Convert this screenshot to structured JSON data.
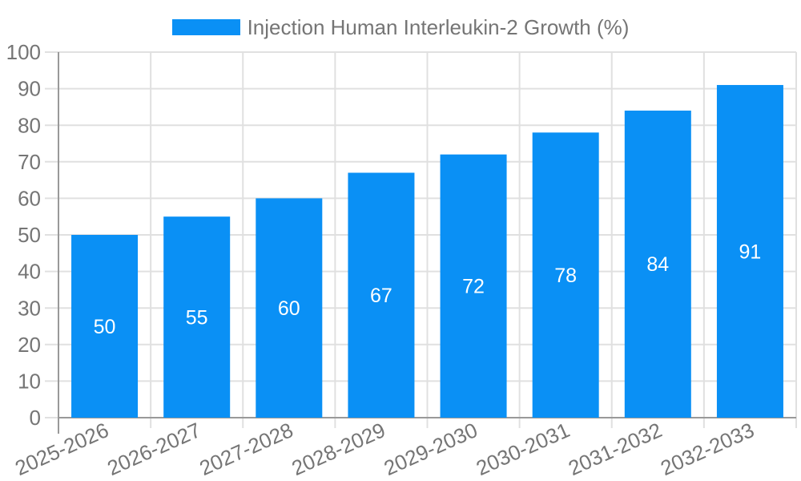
{
  "legend": {
    "label": "Injection Human Interleukin-2 Growth (%)"
  },
  "colors": {
    "bar": "#0a90f5",
    "grid": "#e0e0e0",
    "axis": "#999999",
    "tick_label": "#757575",
    "value_label": "#ffffff",
    "background": "#ffffff"
  },
  "chart_data": {
    "type": "bar",
    "title": "Injection Human Interleukin-2 Growth (%)",
    "categories": [
      "2025-2026",
      "2026-2027",
      "2027-2028",
      "2028-2029",
      "2029-2030",
      "2030-2031",
      "2031-2032",
      "2032-2033"
    ],
    "values": [
      50,
      55,
      60,
      67,
      72,
      78,
      84,
      91
    ],
    "xlabel": "",
    "ylabel": "",
    "ylim": [
      0,
      100
    ],
    "yticks": [
      0,
      10,
      20,
      30,
      40,
      50,
      60,
      70,
      80,
      90,
      100
    ],
    "grid": true,
    "legend_position": "top-center",
    "value_label_position": "inside-center",
    "x_label_rotation_deg": -24
  }
}
